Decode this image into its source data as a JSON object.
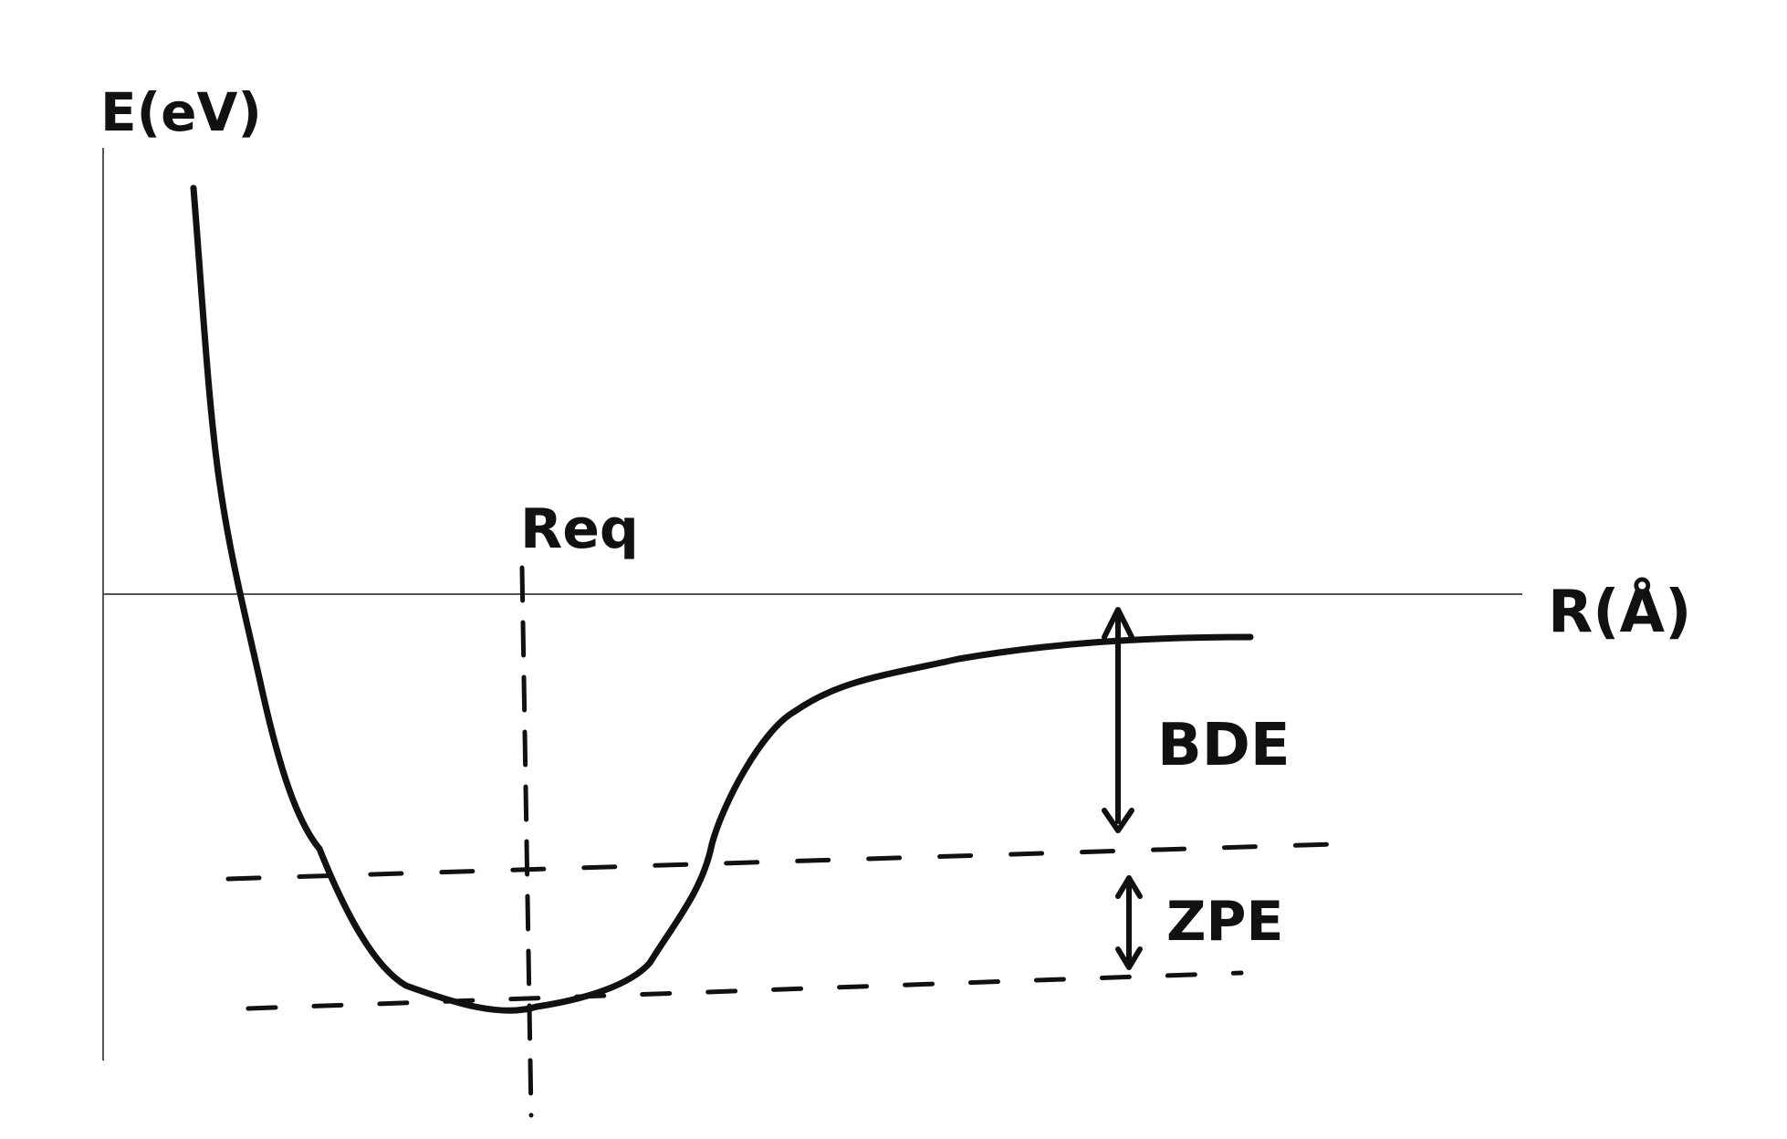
{
  "labels": {
    "y_axis": "E(eV)",
    "x_axis": "R(Å)",
    "equilibrium": "Req",
    "bde": "BDE",
    "zpe": "ZPE"
  },
  "colors": {
    "ink": "#111111",
    "axis": "#555555",
    "background": "#ffffff"
  }
}
